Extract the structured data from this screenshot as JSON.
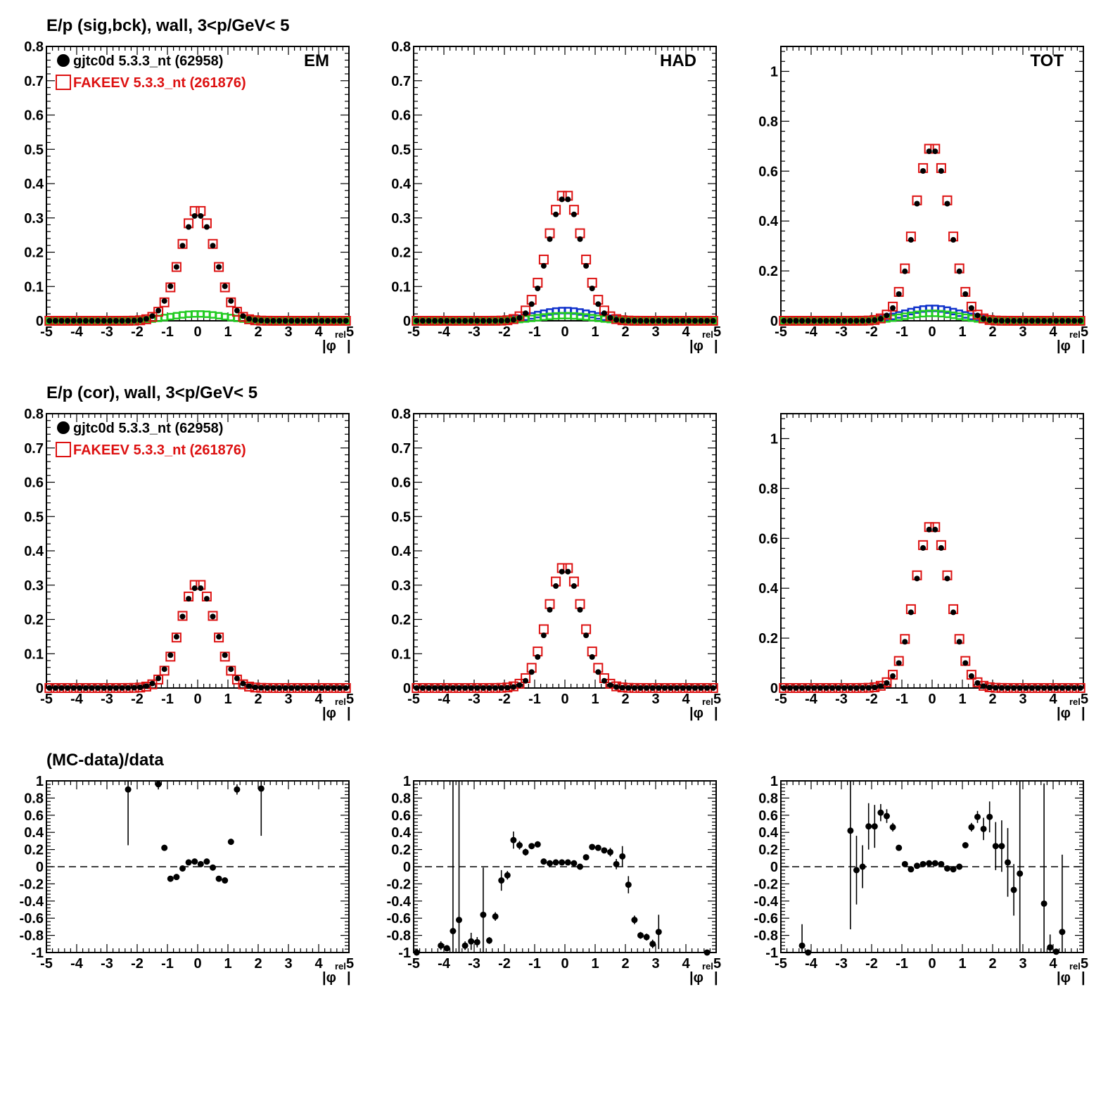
{
  "row_titles": [
    "E/p (sig,bck), wall,  3<p/GeV< 5",
    "E/p (cor), wall,  3<p/GeV< 5",
    "(MC-data)/data"
  ],
  "legend": {
    "data_label": "gjtc0d 5.3.3_nt (62958)",
    "mc_label": "FAKEEV 5.3.3_nt (261876)",
    "data_color": "#000000",
    "mc_color": "#dd1111"
  },
  "colors": {
    "blue_band": "#1133cc",
    "green_band": "#22cc22",
    "dashed_zero": "#000000"
  },
  "x_tick_labels": [
    "-5",
    "-4",
    "-3",
    "-2",
    "-1",
    "0",
    "1",
    "2",
    "3",
    "4",
    "5"
  ],
  "x_axis_label": {
    "main": "|φ",
    "sup": "rel",
    "end": "|"
  },
  "chart_data": [
    {
      "id": "r1c1",
      "type": "scatter",
      "panel_label": "EM",
      "legend": true,
      "xlim": [
        -5,
        5
      ],
      "ylim": [
        0,
        0.8
      ],
      "yticks": [
        0,
        0.1,
        0.2,
        0.3,
        0.4,
        0.5,
        0.6,
        0.7,
        0.8
      ],
      "ytick_labels": [
        "0",
        "0.1",
        "0.2",
        "0.3",
        "0.4",
        "0.5",
        "0.6",
        "0.7",
        "0.8"
      ],
      "peak": {
        "data_amp": 0.31,
        "data_sigma": 0.6,
        "mc_amp": 0.325,
        "mc_sigma": 0.58
      },
      "bands": [
        {
          "name": "green",
          "amp": 0.02,
          "sigma": 0.9,
          "color": "#22cc22"
        }
      ]
    },
    {
      "id": "r1c2",
      "type": "scatter",
      "panel_label": "HAD",
      "legend": false,
      "xlim": [
        -5,
        5
      ],
      "ylim": [
        0,
        0.8
      ],
      "yticks": [
        0,
        0.1,
        0.2,
        0.3,
        0.4,
        0.5,
        0.6,
        0.7,
        0.8
      ],
      "ytick_labels": [
        "0",
        "0.1",
        "0.2",
        "0.3",
        "0.4",
        "0.5",
        "0.6",
        "0.7",
        "0.8"
      ],
      "peak": {
        "data_amp": 0.36,
        "data_sigma": 0.55,
        "mc_amp": 0.37,
        "mc_sigma": 0.58
      },
      "bands": [
        {
          "name": "blue",
          "amp": 0.03,
          "sigma": 0.9,
          "color": "#1133cc"
        },
        {
          "name": "green",
          "amp": 0.015,
          "sigma": 0.9,
          "color": "#22cc22"
        }
      ]
    },
    {
      "id": "r1c3",
      "type": "scatter",
      "panel_label": "TOT",
      "legend": false,
      "xlim": [
        -5,
        5
      ],
      "ylim": [
        0,
        1.1
      ],
      "yticks": [
        0,
        0.2,
        0.4,
        0.6,
        0.8,
        1.0
      ],
      "ytick_labels": [
        "0",
        "0.2",
        "0.4",
        "0.6",
        "0.8",
        "1"
      ],
      "peak": {
        "data_amp": 0.69,
        "data_sigma": 0.57,
        "mc_amp": 0.7,
        "mc_sigma": 0.58
      },
      "bands": [
        {
          "name": "blue",
          "amp": 0.05,
          "sigma": 0.9,
          "color": "#1133cc"
        },
        {
          "name": "green",
          "amp": 0.03,
          "sigma": 0.9,
          "color": "#22cc22"
        }
      ]
    },
    {
      "id": "r2c1",
      "type": "scatter",
      "panel_label": "",
      "legend": true,
      "xlim": [
        -5,
        5
      ],
      "ylim": [
        0,
        0.8
      ],
      "yticks": [
        0,
        0.1,
        0.2,
        0.3,
        0.4,
        0.5,
        0.6,
        0.7,
        0.8
      ],
      "ytick_labels": [
        "0",
        "0.1",
        "0.2",
        "0.3",
        "0.4",
        "0.5",
        "0.6",
        "0.7",
        "0.8"
      ],
      "peak": {
        "data_amp": 0.295,
        "data_sigma": 0.6,
        "mc_amp": 0.305,
        "mc_sigma": 0.58
      },
      "bands": []
    },
    {
      "id": "r2c2",
      "type": "scatter",
      "panel_label": "",
      "legend": false,
      "xlim": [
        -5,
        5
      ],
      "ylim": [
        0,
        0.8
      ],
      "yticks": [
        0,
        0.1,
        0.2,
        0.3,
        0.4,
        0.5,
        0.6,
        0.7,
        0.8
      ],
      "ytick_labels": [
        "0",
        "0.1",
        "0.2",
        "0.3",
        "0.4",
        "0.5",
        "0.6",
        "0.7",
        "0.8"
      ],
      "peak": {
        "data_amp": 0.345,
        "data_sigma": 0.55,
        "mc_amp": 0.355,
        "mc_sigma": 0.58
      },
      "bands": []
    },
    {
      "id": "r2c3",
      "type": "scatter",
      "panel_label": "",
      "legend": false,
      "xlim": [
        -5,
        5
      ],
      "ylim": [
        0,
        1.1
      ],
      "yticks": [
        0,
        0.2,
        0.4,
        0.6,
        0.8,
        1.0
      ],
      "ytick_labels": [
        "0",
        "0.2",
        "0.4",
        "0.6",
        "0.8",
        "1"
      ],
      "peak": {
        "data_amp": 0.645,
        "data_sigma": 0.57,
        "mc_amp": 0.655,
        "mc_sigma": 0.58
      },
      "bands": []
    },
    {
      "id": "r3c1",
      "type": "scatter",
      "panel_label": "",
      "legend": false,
      "ratio": true,
      "xlim": [
        -5,
        5
      ],
      "ylim": [
        -1,
        1
      ],
      "yticks": [
        -1,
        -0.8,
        -0.6,
        -0.4,
        -0.2,
        0,
        0.2,
        0.4,
        0.6,
        0.8,
        1
      ],
      "ytick_labels": [
        "-1",
        "-0.8",
        "-0.6",
        "-0.4",
        "-0.2",
        "0",
        "0.2",
        "0.4",
        "0.6",
        "0.8",
        "1"
      ],
      "points": [
        [
          -2.3,
          0.9,
          0.65
        ],
        [
          -1.3,
          0.96,
          0.06
        ],
        [
          -1.1,
          0.22,
          0.02
        ],
        [
          -0.9,
          -0.14,
          0.02
        ],
        [
          -0.7,
          -0.12,
          0.02
        ],
        [
          -0.5,
          -0.02,
          0.02
        ],
        [
          -0.3,
          0.05,
          0.02
        ],
        [
          -0.1,
          0.06,
          0.02
        ],
        [
          0.1,
          0.03,
          0.02
        ],
        [
          0.3,
          0.06,
          0.02
        ],
        [
          0.5,
          -0.01,
          0.02
        ],
        [
          0.7,
          -0.14,
          0.02
        ],
        [
          0.9,
          -0.16,
          0.02
        ],
        [
          1.1,
          0.29,
          0.02
        ],
        [
          1.3,
          0.9,
          0.06
        ],
        [
          2.1,
          0.91,
          0.55
        ]
      ]
    },
    {
      "id": "r3c2",
      "type": "scatter",
      "panel_label": "",
      "legend": false,
      "ratio": true,
      "xlim": [
        -5,
        5
      ],
      "ylim": [
        -1,
        1
      ],
      "yticks": [
        -1,
        -0.8,
        -0.6,
        -0.4,
        -0.2,
        0,
        0.2,
        0.4,
        0.6,
        0.8,
        1
      ],
      "ytick_labels": [
        "-1",
        "-0.8",
        "-0.6",
        "-0.4",
        "-0.2",
        "0",
        "0.2",
        "0.4",
        "0.6",
        "0.8",
        "1"
      ],
      "points": [
        [
          -4.9,
          -1.0,
          0.0
        ],
        [
          -4.1,
          -0.92,
          0.05
        ],
        [
          -3.9,
          -0.95,
          0.03
        ],
        [
          -3.7,
          -0.75,
          2.0
        ],
        [
          -3.5,
          -0.62,
          2.0
        ],
        [
          -3.3,
          -0.92,
          0.05
        ],
        [
          -3.1,
          -0.87,
          0.1
        ],
        [
          -2.9,
          -0.88,
          0.06
        ],
        [
          -2.7,
          -0.56,
          0.55
        ],
        [
          -2.5,
          -0.86,
          0.04
        ],
        [
          -2.3,
          -0.58,
          0.05
        ],
        [
          -2.1,
          -0.16,
          0.12
        ],
        [
          -1.9,
          -0.1,
          0.05
        ],
        [
          -1.7,
          0.31,
          0.1
        ],
        [
          -1.5,
          0.25,
          0.05
        ],
        [
          -1.3,
          0.17,
          0.04
        ],
        [
          -1.1,
          0.24,
          0.03
        ],
        [
          -0.9,
          0.26,
          0.02
        ],
        [
          -0.7,
          0.06,
          0.02
        ],
        [
          -0.5,
          0.04,
          0.02
        ],
        [
          -0.3,
          0.05,
          0.02
        ],
        [
          -0.1,
          0.05,
          0.02
        ],
        [
          0.1,
          0.05,
          0.02
        ],
        [
          0.3,
          0.04,
          0.02
        ],
        [
          0.5,
          0.0,
          0.02
        ],
        [
          0.7,
          0.11,
          0.02
        ],
        [
          0.9,
          0.23,
          0.02
        ],
        [
          1.1,
          0.22,
          0.03
        ],
        [
          1.3,
          0.19,
          0.03
        ],
        [
          1.5,
          0.17,
          0.05
        ],
        [
          1.7,
          0.03,
          0.06
        ],
        [
          1.9,
          0.12,
          0.12
        ],
        [
          2.1,
          -0.21,
          0.1
        ],
        [
          2.3,
          -0.62,
          0.05
        ],
        [
          2.5,
          -0.8,
          0.04
        ],
        [
          2.7,
          -0.82,
          0.04
        ],
        [
          2.9,
          -0.9,
          0.05
        ],
        [
          3.1,
          -0.76,
          0.2
        ],
        [
          4.7,
          -1.0,
          0.0
        ]
      ]
    },
    {
      "id": "r3c3",
      "type": "scatter",
      "panel_label": "",
      "legend": false,
      "ratio": true,
      "xlim": [
        -5,
        5
      ],
      "ylim": [
        -1,
        1
      ],
      "yticks": [
        -1,
        -0.8,
        -0.6,
        -0.4,
        -0.2,
        0,
        0.2,
        0.4,
        0.6,
        0.8,
        1
      ],
      "ytick_labels": [
        "-1",
        "-0.8",
        "-0.6",
        "-0.4",
        "-0.2",
        "0",
        "0.2",
        "0.4",
        "0.6",
        "0.8",
        "1"
      ],
      "points": [
        [
          -4.3,
          -0.92,
          0.25
        ],
        [
          -4.1,
          -1.0,
          0.0
        ],
        [
          -2.7,
          0.42,
          1.15
        ],
        [
          -2.5,
          -0.04,
          0.4
        ],
        [
          -2.3,
          0.0,
          0.25
        ],
        [
          -2.1,
          0.47,
          0.27
        ],
        [
          -1.9,
          0.47,
          0.25
        ],
        [
          -1.7,
          0.63,
          0.1
        ],
        [
          -1.5,
          0.59,
          0.08
        ],
        [
          -1.3,
          0.46,
          0.05
        ],
        [
          -1.1,
          0.22,
          0.02
        ],
        [
          -0.9,
          0.03,
          0.02
        ],
        [
          -0.7,
          -0.03,
          0.02
        ],
        [
          -0.5,
          0.01,
          0.02
        ],
        [
          -0.3,
          0.03,
          0.02
        ],
        [
          -0.1,
          0.04,
          0.02
        ],
        [
          0.1,
          0.04,
          0.02
        ],
        [
          0.3,
          0.03,
          0.02
        ],
        [
          0.5,
          -0.02,
          0.02
        ],
        [
          0.7,
          -0.03,
          0.02
        ],
        [
          0.9,
          0.0,
          0.02
        ],
        [
          1.1,
          0.25,
          0.02
        ],
        [
          1.3,
          0.46,
          0.05
        ],
        [
          1.5,
          0.58,
          0.07
        ],
        [
          1.7,
          0.44,
          0.13
        ],
        [
          1.9,
          0.58,
          0.18
        ],
        [
          2.1,
          0.24,
          0.28
        ],
        [
          2.3,
          0.24,
          0.3
        ],
        [
          2.5,
          0.05,
          0.4
        ],
        [
          2.7,
          -0.27,
          0.3
        ],
        [
          2.9,
          -0.08,
          1.5
        ],
        [
          3.7,
          -0.43,
          1.4
        ],
        [
          3.9,
          -0.94,
          0.15
        ],
        [
          4.1,
          -0.99,
          0.02
        ],
        [
          4.3,
          -0.76,
          0.9
        ]
      ]
    }
  ]
}
